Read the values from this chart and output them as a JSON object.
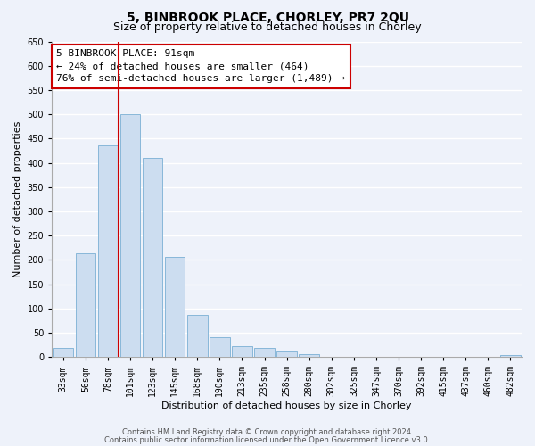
{
  "title": "5, BINBROOK PLACE, CHORLEY, PR7 2QU",
  "subtitle": "Size of property relative to detached houses in Chorley",
  "xlabel": "Distribution of detached houses by size in Chorley",
  "ylabel": "Number of detached properties",
  "bin_labels": [
    "33sqm",
    "56sqm",
    "78sqm",
    "101sqm",
    "123sqm",
    "145sqm",
    "168sqm",
    "190sqm",
    "213sqm",
    "235sqm",
    "258sqm",
    "280sqm",
    "302sqm",
    "325sqm",
    "347sqm",
    "370sqm",
    "392sqm",
    "415sqm",
    "437sqm",
    "460sqm",
    "482sqm"
  ],
  "bar_values": [
    18,
    213,
    435,
    500,
    410,
    207,
    87,
    40,
    22,
    18,
    12,
    5,
    0,
    0,
    0,
    0,
    0,
    0,
    0,
    0,
    4
  ],
  "bar_color": "#ccddf0",
  "bar_edge_color": "#7aafd4",
  "vline_x_index": 3,
  "vline_color": "#cc0000",
  "annotation_box_text": "5 BINBROOK PLACE: 91sqm\n← 24% of detached houses are smaller (464)\n76% of semi-detached houses are larger (1,489) →",
  "annotation_box_color": "#ffffff",
  "annotation_box_edge_color": "#cc0000",
  "ylim": [
    0,
    650
  ],
  "yticks": [
    0,
    50,
    100,
    150,
    200,
    250,
    300,
    350,
    400,
    450,
    500,
    550,
    600,
    650
  ],
  "footer_line1": "Contains HM Land Registry data © Crown copyright and database right 2024.",
  "footer_line2": "Contains public sector information licensed under the Open Government Licence v3.0.",
  "bg_color": "#eef2fa",
  "grid_color": "#ffffff",
  "title_fontsize": 10,
  "subtitle_fontsize": 9,
  "tick_label_fontsize": 7,
  "ylabel_fontsize": 8,
  "xlabel_fontsize": 8,
  "annotation_fontsize": 8,
  "footer_fontsize": 6
}
